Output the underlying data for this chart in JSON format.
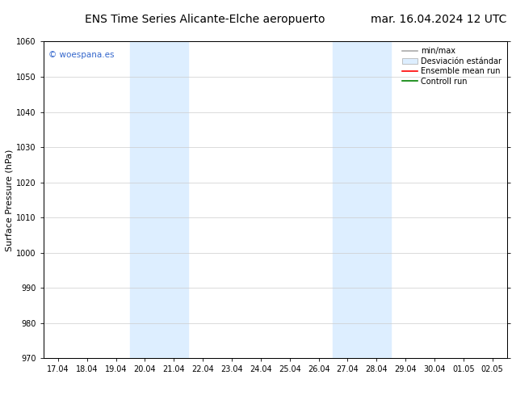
{
  "title_left": "ENS Time Series Alicante-Elche aeropuerto",
  "title_right": "mar. 16.04.2024 12 UTC",
  "ylabel": "Surface Pressure (hPa)",
  "xlim_dates": [
    "17.04",
    "18.04",
    "19.04",
    "20.04",
    "21.04",
    "22.04",
    "23.04",
    "24.04",
    "25.04",
    "26.04",
    "27.04",
    "28.04",
    "29.04",
    "30.04",
    "01.05",
    "02.05"
  ],
  "ylim": [
    970,
    1060
  ],
  "yticks": [
    970,
    980,
    990,
    1000,
    1010,
    1020,
    1030,
    1040,
    1050,
    1060
  ],
  "shaded_regions": [
    {
      "xstart": 3,
      "xend": 5,
      "color": "#ddeeff"
    },
    {
      "xstart": 10,
      "xend": 12,
      "color": "#ddeeff"
    }
  ],
  "watermark": "© woespana.es",
  "watermark_color": "#3366cc",
  "legend_entries": [
    {
      "label": "min/max",
      "color": "#aaaaaa",
      "lw": 1.2
    },
    {
      "label": "Desviación estándar",
      "facecolor": "#ddeeff",
      "edgecolor": "#aaaaaa"
    },
    {
      "label": "Ensemble mean run",
      "color": "red",
      "lw": 1.2
    },
    {
      "label": "Controll run",
      "color": "green",
      "lw": 1.2
    }
  ],
  "bg_color": "#ffffff",
  "plot_bg_color": "#ffffff",
  "grid_color": "#cccccc",
  "title_fontsize": 10,
  "tick_fontsize": 7,
  "ylabel_fontsize": 8,
  "legend_fontsize": 7
}
